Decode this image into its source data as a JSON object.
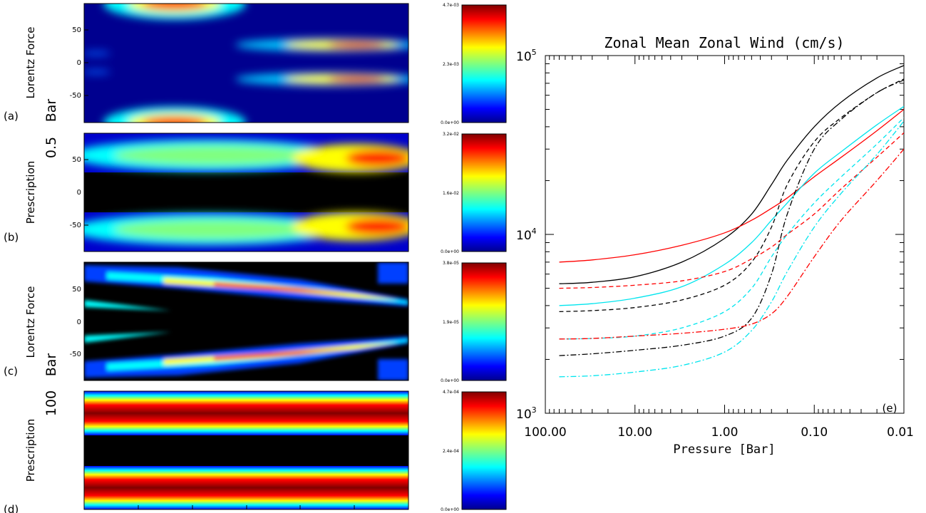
{
  "panels_left": [
    {
      "letter": "(a)",
      "yticks": [
        "50",
        "0",
        "-50"
      ],
      "colorbar": {
        "top": "4.7e-03",
        "mid": "2.3e-03",
        "bot": "0.0e+00"
      }
    },
    {
      "letter": "(b)",
      "yticks": [
        "50",
        "0",
        "-50"
      ],
      "colorbar": {
        "top": "3.2e-02",
        "mid": "1.6e-02",
        "bot": "0.0e+00"
      }
    },
    {
      "letter": "(c)",
      "yticks": [
        "50",
        "0",
        "-50"
      ],
      "colorbar": {
        "top": "3.8e-05",
        "mid": "1.9e-05",
        "bot": "0.0e+00"
      }
    },
    {
      "letter": "(d)",
      "yticks": [],
      "colorbar": {
        "top": "4.7e-04",
        "mid": "2.4e-04",
        "bot": "0.0e+00"
      }
    }
  ],
  "side_labels": {
    "group1_line1": "Lorentz Force",
    "group1_line2": "Bar",
    "group2_line1": "Prescription",
    "group2_line2": "0.5",
    "group3_line1": "Lorentz Force",
    "group3_line2": "Bar",
    "group4_line1": "Prescription",
    "group4_line2": "100"
  },
  "chart_data": {
    "type": "line",
    "title": "Zonal Mean Zonal Wind (cm/s)",
    "xlabel": "Pressure [Bar]",
    "ylabel": "",
    "panel_label": "(e)",
    "x_scale": "log",
    "x_reversed": true,
    "y_scale": "log",
    "xlim": [
      100,
      0.01
    ],
    "ylim": [
      1000,
      100000
    ],
    "xtick_labels": [
      "100.00",
      "10.00",
      "1.00",
      "0.10",
      "0.01"
    ],
    "ytick_labels": [
      {
        "base": "10",
        "exp": "5"
      },
      {
        "base": "10",
        "exp": "4"
      },
      {
        "base": "10",
        "exp": "3"
      }
    ],
    "x": [
      70,
      30,
      10,
      3,
      1,
      0.5,
      0.3,
      0.2,
      0.1,
      0.05,
      0.02,
      0.01
    ],
    "series": [
      {
        "color": "#000000",
        "style": "solid",
        "values": [
          5300,
          5400,
          5800,
          7000,
          9500,
          13000,
          19000,
          26000,
          40000,
          55000,
          75000,
          88000
        ]
      },
      {
        "color": "#ff0000",
        "style": "solid",
        "values": [
          7000,
          7200,
          7700,
          8700,
          10200,
          12000,
          14000,
          16000,
          21000,
          27000,
          38000,
          50000
        ]
      },
      {
        "color": "#00e5ee",
        "style": "solid",
        "values": [
          4000,
          4100,
          4400,
          5100,
          6800,
          9000,
          12000,
          15000,
          22000,
          29000,
          41000,
          52000
        ]
      },
      {
        "color": "#000000",
        "style": "dashed",
        "values": [
          3700,
          3750,
          3900,
          4300,
          5200,
          7000,
          11000,
          19000,
          33000,
          45000,
          62000,
          74000
        ]
      },
      {
        "color": "#ff0000",
        "style": "dashed",
        "values": [
          5000,
          5050,
          5200,
          5500,
          6200,
          7300,
          8500,
          10000,
          13000,
          18000,
          27000,
          37000
        ]
      },
      {
        "color": "#00e5ee",
        "style": "dashed",
        "values": [
          2600,
          2620,
          2700,
          3000,
          3700,
          5000,
          7500,
          10000,
          15000,
          21000,
          32000,
          45000
        ]
      },
      {
        "color": "#000000",
        "style": "dashdot",
        "values": [
          2100,
          2150,
          2250,
          2400,
          2700,
          3400,
          6000,
          13000,
          30000,
          44000,
          62000,
          73000
        ]
      },
      {
        "color": "#ff0000",
        "style": "dashdot",
        "values": [
          2600,
          2620,
          2700,
          2800,
          2950,
          3150,
          3600,
          4500,
          7500,
          12000,
          20000,
          30000
        ]
      },
      {
        "color": "#00e5ee",
        "style": "dashdot",
        "values": [
          1600,
          1620,
          1700,
          1850,
          2200,
          2900,
          4200,
          6200,
          11000,
          17000,
          28000,
          43000
        ]
      }
    ]
  }
}
